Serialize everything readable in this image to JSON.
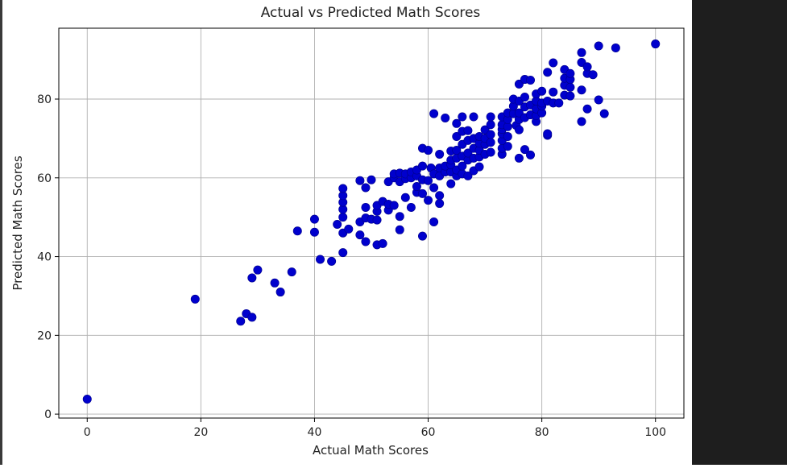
{
  "colors": {
    "marker": "#0000cd",
    "marker_edge": "#00008b",
    "grid": "#b0b0b0",
    "axes": "#000000",
    "right_panel": "#1e1e1e"
  },
  "chart_data": {
    "type": "scatter",
    "title": "Actual vs Predicted Math Scores",
    "xlabel": "Actual Math Scores",
    "ylabel": "Predicted Math Scores",
    "xlim": [
      -5,
      105
    ],
    "ylim": [
      -1,
      98
    ],
    "xticks": [
      0,
      20,
      40,
      60,
      80,
      100
    ],
    "yticks": [
      0,
      20,
      40,
      60,
      80
    ],
    "grid": true,
    "legend": "none",
    "points": [
      [
        0,
        3.8
      ],
      [
        19,
        29.2
      ],
      [
        27,
        23.6
      ],
      [
        28,
        25.5
      ],
      [
        29,
        24.6
      ],
      [
        29,
        34.6
      ],
      [
        30,
        36.6
      ],
      [
        33,
        33.3
      ],
      [
        34,
        31
      ],
      [
        36,
        36.1
      ],
      [
        37,
        46.5
      ],
      [
        40,
        46.2
      ],
      [
        40,
        49.5
      ],
      [
        41,
        39.3
      ],
      [
        43,
        38.8
      ],
      [
        44,
        48.2
      ],
      [
        45,
        41
      ],
      [
        45,
        46
      ],
      [
        45,
        50
      ],
      [
        45,
        52
      ],
      [
        45,
        53.8
      ],
      [
        45,
        55.5
      ],
      [
        45,
        57.3
      ],
      [
        46,
        47
      ],
      [
        48,
        45.5
      ],
      [
        48,
        48.8
      ],
      [
        48,
        59.3
      ],
      [
        49,
        43.8
      ],
      [
        49,
        49.8
      ],
      [
        49,
        52.5
      ],
      [
        49,
        57.5
      ],
      [
        50,
        59.5
      ],
      [
        50,
        49.5
      ],
      [
        51,
        43
      ],
      [
        51,
        49.3
      ],
      [
        51,
        51.5
      ],
      [
        51,
        53
      ],
      [
        52,
        43.3
      ],
      [
        52,
        54
      ],
      [
        53,
        51.8
      ],
      [
        53,
        53.3
      ],
      [
        53,
        59
      ],
      [
        54,
        53
      ],
      [
        54,
        60
      ],
      [
        54,
        61
      ],
      [
        55,
        46.8
      ],
      [
        55,
        50.2
      ],
      [
        55,
        59
      ],
      [
        55,
        61.2
      ],
      [
        56,
        55
      ],
      [
        56,
        59.8
      ],
      [
        56,
        61
      ],
      [
        57,
        52.5
      ],
      [
        57,
        60
      ],
      [
        57,
        61.5
      ],
      [
        58,
        56.3
      ],
      [
        58,
        57.8
      ],
      [
        58,
        60.5
      ],
      [
        58,
        62
      ],
      [
        59,
        45.2
      ],
      [
        59,
        56
      ],
      [
        59,
        59.5
      ],
      [
        59,
        63
      ],
      [
        59,
        67.5
      ],
      [
        60,
        54.3
      ],
      [
        60,
        59.3
      ],
      [
        60,
        67
      ],
      [
        60.5,
        62.5
      ],
      [
        61,
        48.8
      ],
      [
        61,
        57.5
      ],
      [
        61,
        61
      ],
      [
        61,
        76.3
      ],
      [
        62,
        53.5
      ],
      [
        62,
        55.5
      ],
      [
        62,
        60.5
      ],
      [
        62,
        62.5
      ],
      [
        62,
        66
      ],
      [
        63,
        61.5
      ],
      [
        63,
        63
      ],
      [
        63,
        75.2
      ],
      [
        64,
        58.5
      ],
      [
        64,
        61.5
      ],
      [
        64,
        63.3
      ],
      [
        64,
        64.5
      ],
      [
        64,
        66.8
      ],
      [
        65,
        60.5
      ],
      [
        65,
        62
      ],
      [
        65,
        65
      ],
      [
        65,
        67
      ],
      [
        65,
        70.5
      ],
      [
        65,
        73.8
      ],
      [
        66,
        61
      ],
      [
        66,
        63
      ],
      [
        66,
        65.5
      ],
      [
        66,
        68.5
      ],
      [
        66,
        71.8
      ],
      [
        66,
        75.5
      ],
      [
        67,
        60.5
      ],
      [
        67,
        64.5
      ],
      [
        67,
        66.3
      ],
      [
        67,
        69.5
      ],
      [
        67,
        72
      ],
      [
        68,
        61.8
      ],
      [
        68,
        65
      ],
      [
        68,
        67.5
      ],
      [
        68,
        70
      ],
      [
        68,
        75.5
      ],
      [
        69,
        62.8
      ],
      [
        69,
        65.3
      ],
      [
        69,
        67
      ],
      [
        69,
        68.8
      ],
      [
        69,
        70.5
      ],
      [
        70,
        66
      ],
      [
        70,
        68.5
      ],
      [
        70,
        70
      ],
      [
        70,
        72.2
      ],
      [
        71,
        66.5
      ],
      [
        71,
        69
      ],
      [
        71,
        71
      ],
      [
        71,
        73.5
      ],
      [
        71,
        75.5
      ],
      [
        73,
        66
      ],
      [
        73,
        67.5
      ],
      [
        73,
        69.5
      ],
      [
        73,
        71.2
      ],
      [
        73,
        72.3
      ],
      [
        73,
        73.5
      ],
      [
        73,
        75.5
      ],
      [
        74,
        68
      ],
      [
        74,
        70.5
      ],
      [
        74,
        73
      ],
      [
        74,
        74.8
      ],
      [
        74,
        76.5
      ],
      [
        75,
        76.3
      ],
      [
        75,
        78.2
      ],
      [
        75,
        80
      ],
      [
        75.5,
        73.3
      ],
      [
        76,
        65
      ],
      [
        76,
        72.2
      ],
      [
        76,
        74.8
      ],
      [
        76,
        76.5
      ],
      [
        76,
        79.5
      ],
      [
        76,
        83.8
      ],
      [
        77,
        67.2
      ],
      [
        77,
        75.3
      ],
      [
        77,
        78
      ],
      [
        77,
        80.5
      ],
      [
        77,
        85
      ],
      [
        78,
        65.8
      ],
      [
        78,
        76
      ],
      [
        78,
        78.5
      ],
      [
        78,
        84.8
      ],
      [
        79,
        74.3
      ],
      [
        79,
        75.8
      ],
      [
        79,
        77.5
      ],
      [
        79,
        79.5
      ],
      [
        79,
        81.3
      ],
      [
        80,
        76.5
      ],
      [
        80,
        78.2
      ],
      [
        80,
        79
      ],
      [
        80,
        82
      ],
      [
        81,
        70.8
      ],
      [
        81,
        71.2
      ],
      [
        81,
        79.5
      ],
      [
        81,
        86.8
      ],
      [
        82,
        79
      ],
      [
        82,
        81.8
      ],
      [
        82,
        89.2
      ],
      [
        83,
        79
      ],
      [
        84,
        81
      ],
      [
        84,
        83.5
      ],
      [
        84,
        85.3
      ],
      [
        84,
        87.5
      ],
      [
        85,
        80.8
      ],
      [
        85,
        83
      ],
      [
        85,
        85
      ],
      [
        85,
        86.5
      ],
      [
        87,
        74.3
      ],
      [
        87,
        82.3
      ],
      [
        87,
        89.3
      ],
      [
        87,
        91.8
      ],
      [
        88,
        77.5
      ],
      [
        88,
        86.5
      ],
      [
        88,
        88.2
      ],
      [
        89,
        86.2
      ],
      [
        90,
        79.8
      ],
      [
        90,
        93.5
      ],
      [
        91,
        76.3
      ],
      [
        93,
        93
      ],
      [
        100,
        94
      ]
    ]
  }
}
